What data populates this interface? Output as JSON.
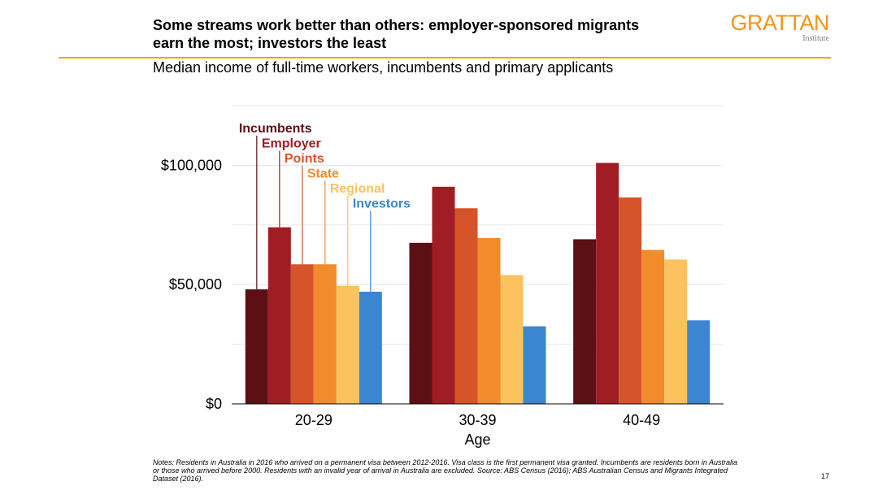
{
  "slide": {
    "title": "Some streams work better than others: employer-sponsored migrants earn the most; investors the least",
    "subtitle": "Median income of full-time workers, incumbents and primary applicants",
    "brand": "GRATTAN",
    "brand_sub": "Institute",
    "notes": "Notes: Residents in Australia in 2016 who arrived on a permanent visa between 2012-2016. Visa class is the first permanent visa granted. Incumbents are residents born in Australia or those who arrived before 2000. Residents with an invalid year of arrival in Australia are excluded. Source: ABS Census (2016); ABS Australian Census and Migrants Integrated Dataset (2016).",
    "page_number": "17"
  },
  "chart_data": {
    "type": "bar",
    "categories": [
      "20-29",
      "30-39",
      "40-49"
    ],
    "xlabel": "Age",
    "ylabel": "",
    "ylim": [
      0,
      125000
    ],
    "yticks": [
      {
        "value": 0,
        "label": "$0"
      },
      {
        "value": 50000,
        "label": "$50,000"
      },
      {
        "value": 100000,
        "label": "$100,000"
      }
    ],
    "grid": true,
    "legend": "top-left, inline labels",
    "series": [
      {
        "name": "Incumbents",
        "color": "#5c1014",
        "values": [
          48000,
          67500,
          69000
        ]
      },
      {
        "name": "Employer",
        "color": "#a11d24",
        "values": [
          74000,
          91000,
          101000
        ]
      },
      {
        "name": "Points",
        "color": "#d6542a",
        "values": [
          58500,
          82000,
          86500
        ]
      },
      {
        "name": "State",
        "color": "#f28b2c",
        "values": [
          58500,
          69500,
          64500
        ]
      },
      {
        "name": "Regional",
        "color": "#fcc25d",
        "values": [
          49500,
          54000,
          60500
        ]
      },
      {
        "name": "Investors",
        "color": "#3a86d1",
        "values": [
          47000,
          32500,
          35000
        ]
      }
    ]
  }
}
